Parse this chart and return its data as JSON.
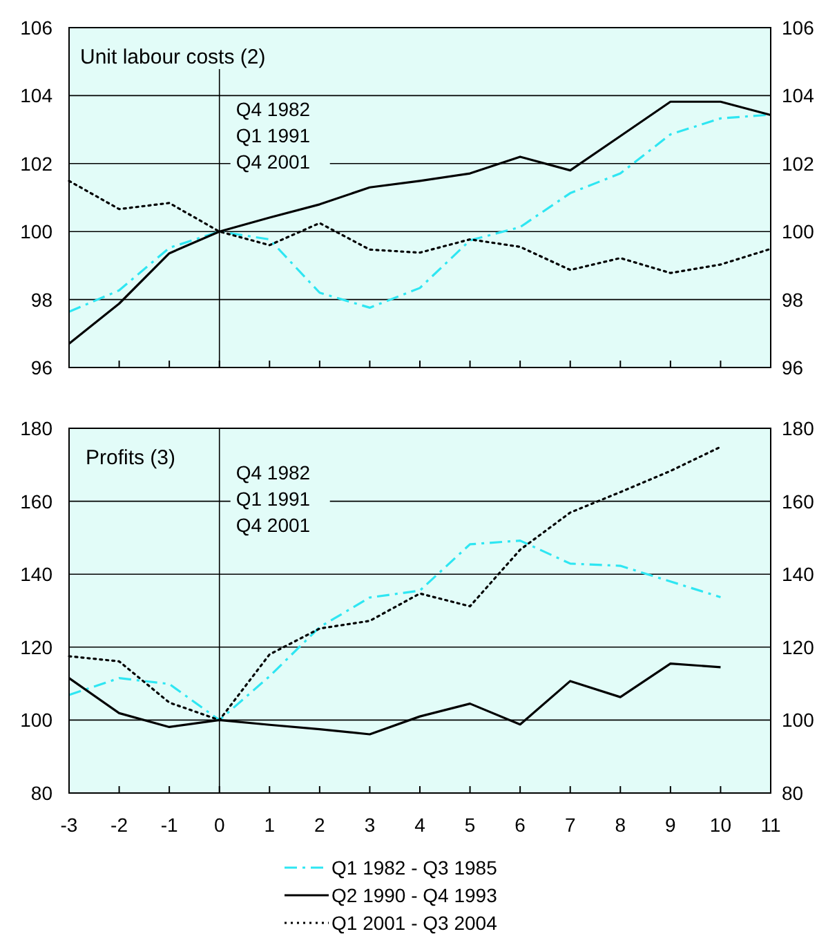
{
  "chart_data": [
    {
      "type": "line",
      "title": "Unit labour costs (2)",
      "x": [
        -3,
        -2,
        -1,
        0,
        1,
        2,
        3,
        4,
        5,
        6,
        7,
        8,
        9,
        10,
        11
      ],
      "xlim": [
        -3,
        11
      ],
      "xticks": [
        -3,
        -2,
        -1,
        0,
        1,
        2,
        3,
        4,
        5,
        6,
        7,
        8,
        9,
        10,
        11
      ],
      "ylim": [
        96,
        106
      ],
      "yticks": [
        96,
        98,
        100,
        102,
        104,
        106
      ],
      "y2lim": [
        96,
        106
      ],
      "y2ticks": [
        96,
        98,
        100,
        102,
        104,
        106
      ],
      "tick_labels": "y",
      "grid": "y",
      "legend": false,
      "ref_lines": [
        {
          "axis": "x",
          "value": 0,
          "label": "Q4 1982\nQ1 1991\nQ4 2001"
        }
      ],
      "series": [
        {
          "color": "#2ee6f2",
          "line_style": "dashed",
          "values": [
            97.64,
            98.27,
            99.52,
            100,
            99.77,
            98.2,
            97.76,
            98.34,
            99.74,
            100.13,
            101.13,
            101.71,
            102.86,
            103.33,
            103.44
          ]
        },
        {
          "color": "#000000",
          "line_style": "solid",
          "values": [
            96.7,
            97.88,
            99.36,
            100,
            100.41,
            100.8,
            101.3,
            101.49,
            101.71,
            102.2,
            101.8,
            102.81,
            103.82,
            103.82,
            103.43
          ]
        },
        {
          "color": "#000000",
          "line_style": "dotted",
          "values": [
            101.49,
            100.66,
            100.84,
            100,
            99.6,
            100.25,
            99.47,
            99.38,
            99.77,
            99.55,
            98.87,
            99.22,
            98.78,
            99.03,
            99.49
          ]
        }
      ]
    },
    {
      "type": "line",
      "title": "Profits (3)",
      "x": [
        -3,
        -2,
        -1,
        0,
        1,
        2,
        3,
        4,
        5,
        6,
        7,
        8,
        9,
        10
      ],
      "xlim": [
        -3,
        11
      ],
      "xticks": [
        -3,
        -2,
        -1,
        0,
        1,
        2,
        3,
        4,
        5,
        6,
        7,
        8,
        9,
        10,
        11
      ],
      "ylim": [
        80,
        180
      ],
      "yticks": [
        80,
        100,
        120,
        140,
        160,
        180
      ],
      "y2lim": [
        80,
        180
      ],
      "y2ticks": [
        80,
        100,
        120,
        140,
        160,
        180
      ],
      "grid": "y",
      "legend": "bottom",
      "ref_lines": [
        {
          "axis": "x",
          "value": 0,
          "label": "Q4 1982\nQ1 1991\nQ4 2001"
        }
      ],
      "series": [
        {
          "name": "Q1 1982 - Q3 1985",
          "color": "#2ee6f2",
          "line_style": "dashed",
          "values": [
            106.9,
            111.5,
            109.9,
            100,
            112,
            125.5,
            133.6,
            135.5,
            148.2,
            149.2,
            142.9,
            142.3,
            138,
            133.7
          ]
        },
        {
          "name": "Q2 1990 - Q4 1993",
          "color": "#000000",
          "line_style": "solid",
          "values": [
            111.5,
            101.9,
            98.1,
            100,
            98.7,
            97.5,
            96.1,
            101,
            104.5,
            98.8,
            110.7,
            106.3,
            115.5,
            114.5
          ]
        },
        {
          "name": "Q1 2001 - Q3 2004",
          "color": "#000000",
          "line_style": "dotted",
          "values": [
            117.5,
            116.1,
            104.8,
            100,
            118,
            125.1,
            127.2,
            134.7,
            131.2,
            146.7,
            156.9,
            162.5,
            168.3,
            174.9
          ]
        }
      ]
    }
  ]
}
